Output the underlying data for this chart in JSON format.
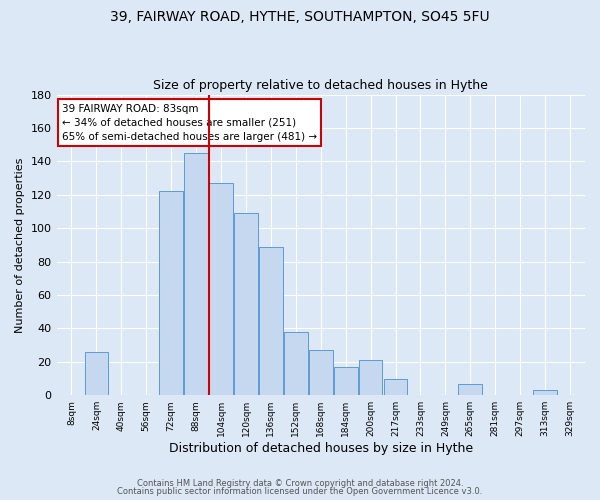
{
  "title1": "39, FAIRWAY ROAD, HYTHE, SOUTHAMPTON, SO45 5FU",
  "title2": "Size of property relative to detached houses in Hythe",
  "xlabel": "Distribution of detached houses by size in Hythe",
  "ylabel": "Number of detached properties",
  "footer1": "Contains HM Land Registry data © Crown copyright and database right 2024.",
  "footer2": "Contains public sector information licensed under the Open Government Licence v3.0.",
  "bin_labels": [
    "8sqm",
    "24sqm",
    "40sqm",
    "56sqm",
    "72sqm",
    "88sqm",
    "104sqm",
    "120sqm",
    "136sqm",
    "152sqm",
    "168sqm",
    "184sqm",
    "200sqm",
    "217sqm",
    "233sqm",
    "249sqm",
    "265sqm",
    "281sqm",
    "297sqm",
    "313sqm",
    "329sqm"
  ],
  "bar_values": [
    0,
    26,
    0,
    0,
    122,
    145,
    127,
    109,
    89,
    38,
    27,
    17,
    21,
    10,
    0,
    0,
    7,
    0,
    0,
    3,
    0
  ],
  "bar_color": "#c5d8f0",
  "bar_edge_color": "#5b9bd5",
  "vline_x": 5.5,
  "vline_color": "#cc0000",
  "annotation_text": "39 FAIRWAY ROAD: 83sqm\n← 34% of detached houses are smaller (251)\n65% of semi-detached houses are larger (481) →",
  "annotation_box_color": "#ffffff",
  "annotation_box_edge_color": "#cc0000",
  "ylim": [
    0,
    180
  ],
  "yticks": [
    0,
    20,
    40,
    60,
    80,
    100,
    120,
    140,
    160,
    180
  ],
  "background_color": "#dce8f5",
  "plot_bg_color": "#dce8f5",
  "grid_color": "#ffffff",
  "title1_fontsize": 10,
  "title2_fontsize": 9,
  "xlabel_fontsize": 9,
  "ylabel_fontsize": 8
}
